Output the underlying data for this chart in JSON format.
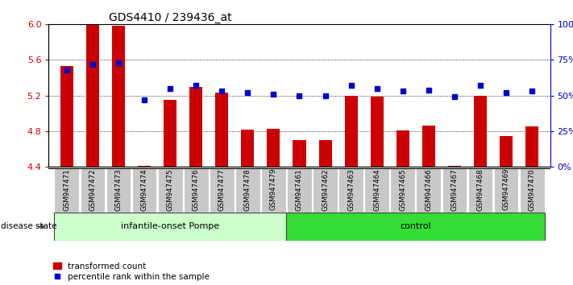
{
  "title": "GDS4410 / 239436_at",
  "samples": [
    "GSM947471",
    "GSM947472",
    "GSM947473",
    "GSM947474",
    "GSM947475",
    "GSM947476",
    "GSM947477",
    "GSM947478",
    "GSM947479",
    "GSM947461",
    "GSM947462",
    "GSM947463",
    "GSM947464",
    "GSM947465",
    "GSM947466",
    "GSM947467",
    "GSM947468",
    "GSM947469",
    "GSM947470"
  ],
  "bar_values": [
    5.53,
    6.0,
    5.98,
    4.41,
    5.15,
    5.3,
    5.23,
    4.82,
    4.83,
    4.7,
    4.7,
    5.2,
    5.19,
    4.81,
    4.86,
    4.41,
    5.2,
    4.74,
    4.85
  ],
  "dot_values": [
    68,
    72,
    73,
    47,
    55,
    57,
    53,
    52,
    51,
    50,
    50,
    57,
    55,
    53,
    54,
    49,
    57,
    52,
    53
  ],
  "ylim_left": [
    4.4,
    6.0
  ],
  "ylim_right": [
    0,
    100
  ],
  "yticks_left": [
    4.4,
    4.8,
    5.2,
    5.6,
    6.0
  ],
  "yticks_right": [
    0,
    25,
    50,
    75,
    100
  ],
  "ytick_labels_right": [
    "0%",
    "25%",
    "50%",
    "75%",
    "100%"
  ],
  "bar_color": "#CC0000",
  "dot_color": "#0000CC",
  "group1_label": "infantile-onset Pompe",
  "group2_label": "control",
  "group1_count": 9,
  "group2_count": 10,
  "disease_state_label": "disease state",
  "legend_bar_label": "transformed count",
  "legend_dot_label": "percentile rank within the sample",
  "group1_color": "#CCFFCC",
  "group2_color": "#33DD33",
  "label_box_color": "#C8C8C8",
  "tick_label_color_left": "#CC0000",
  "tick_label_color_right": "#0000CC",
  "title_fontsize": 10,
  "bar_width": 0.5
}
